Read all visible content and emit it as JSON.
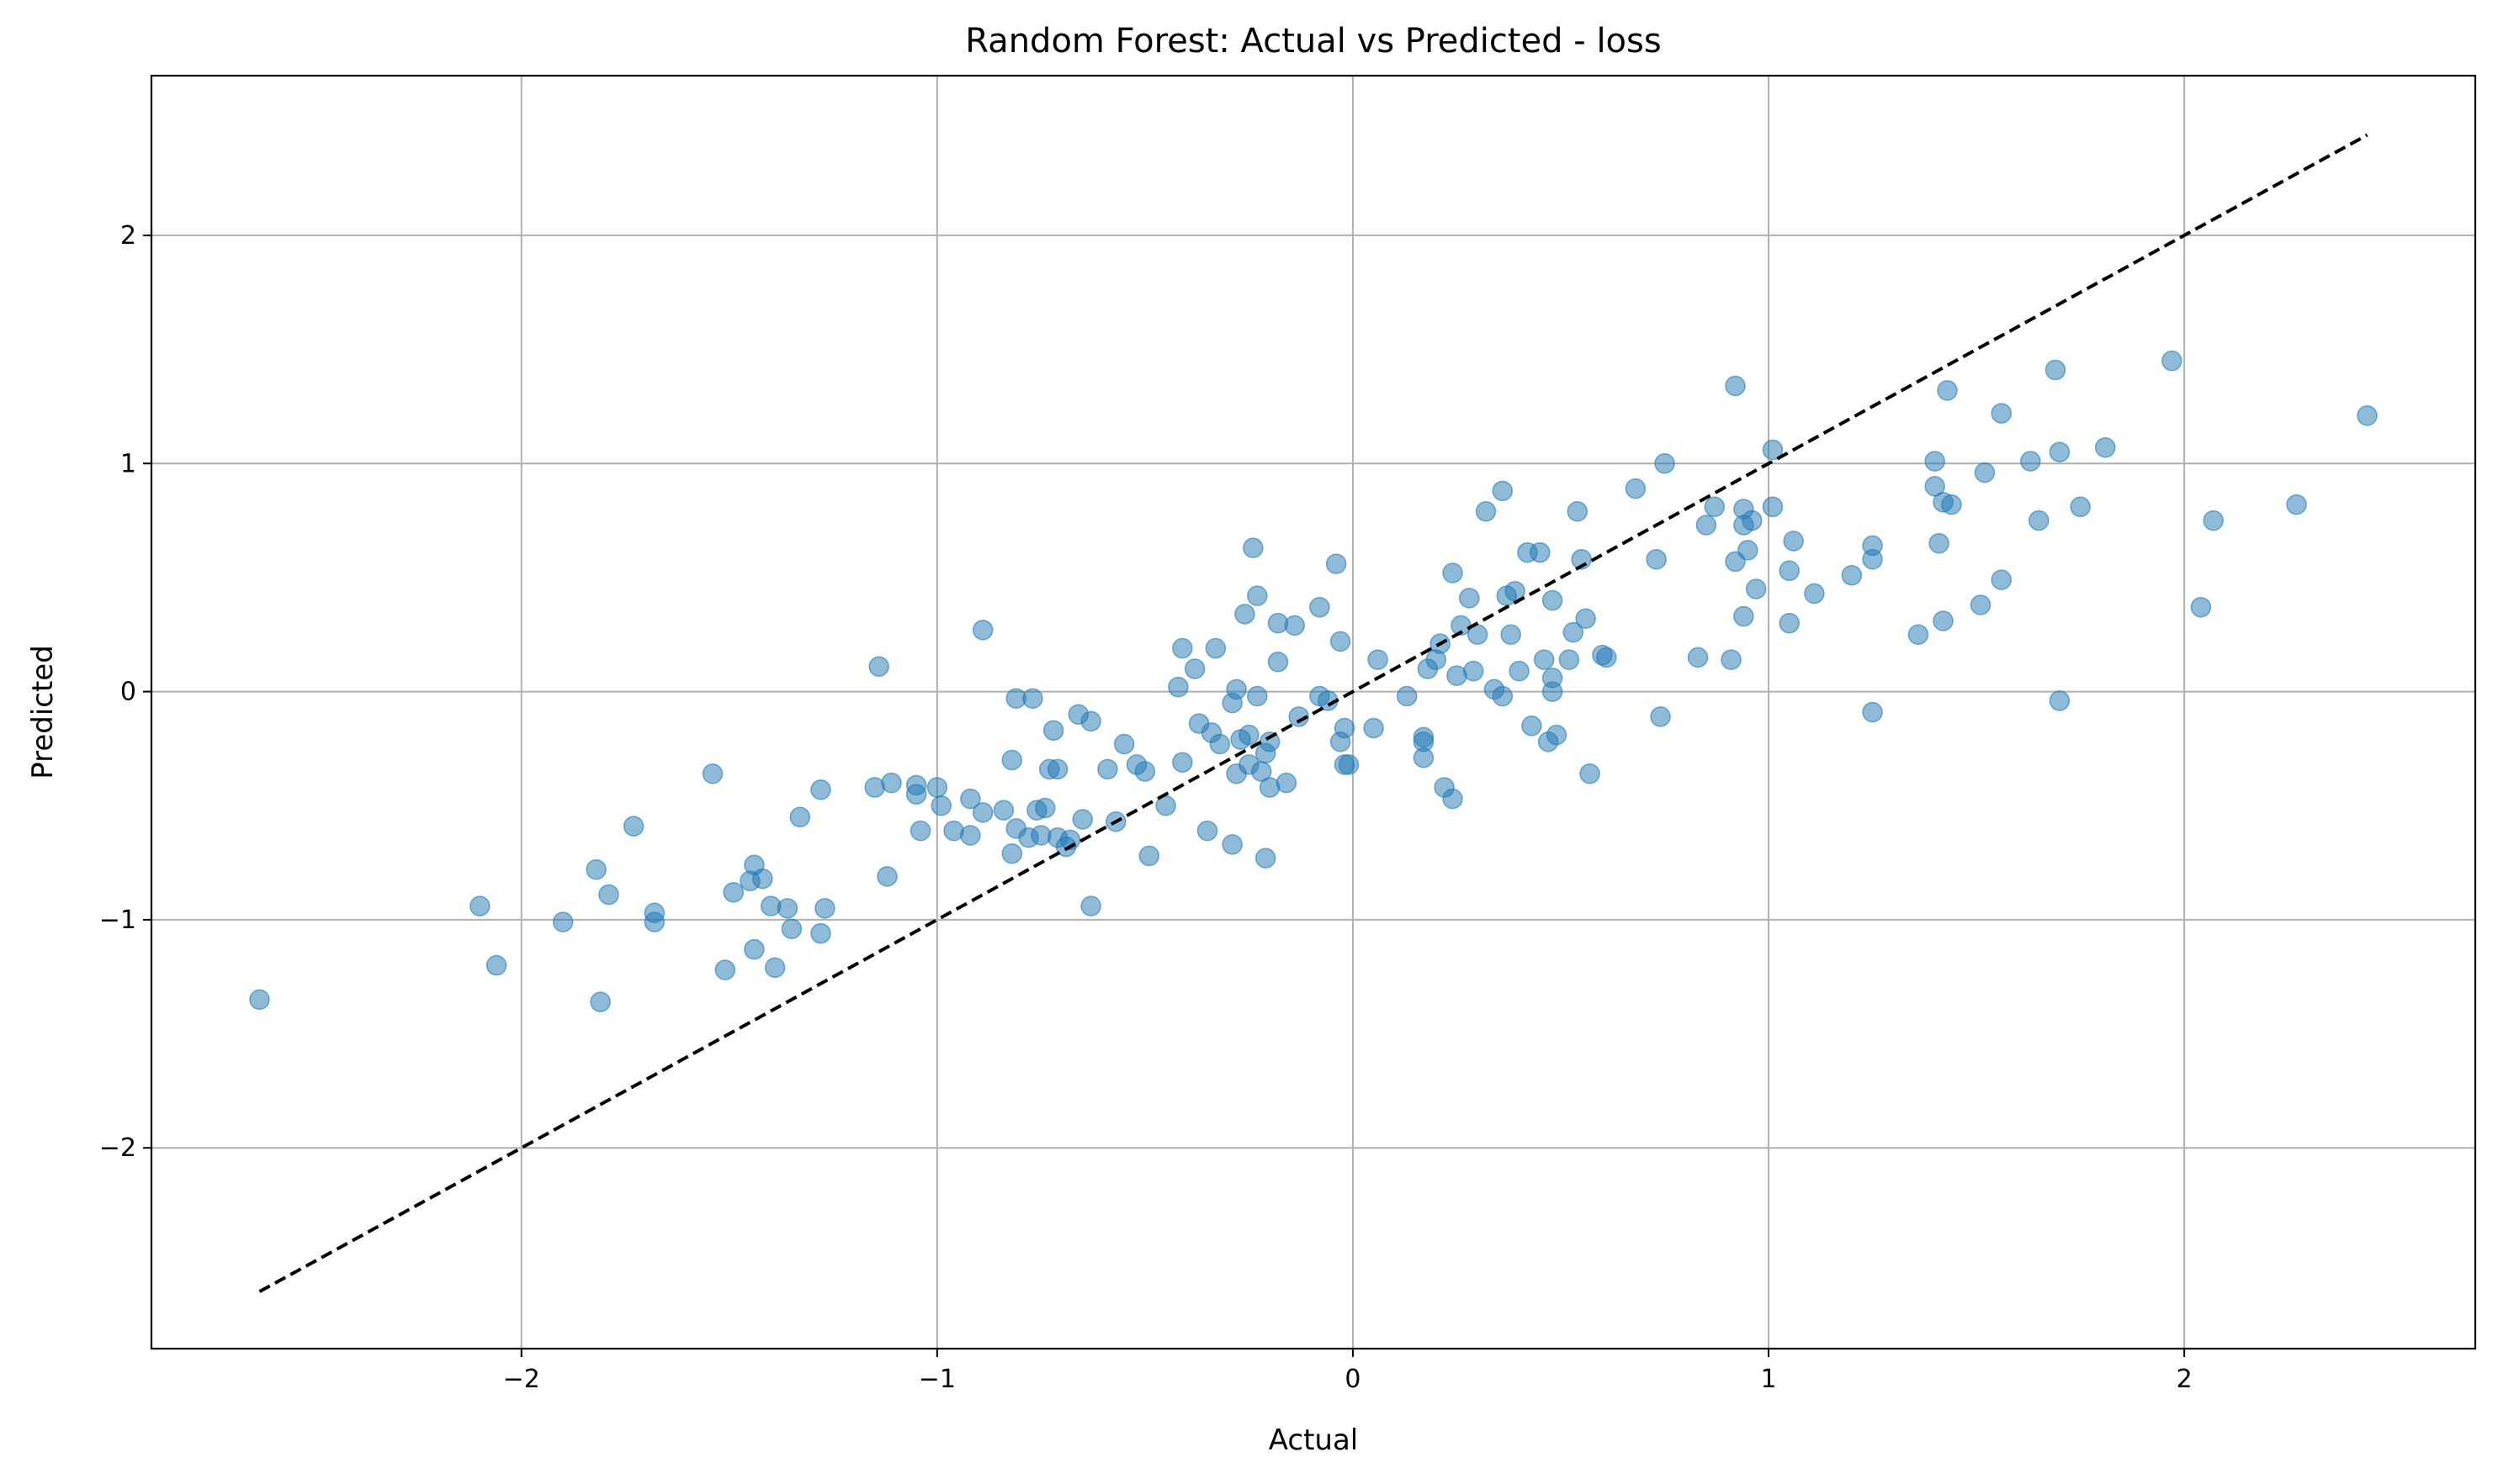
{
  "chart_data": {
    "type": "scatter",
    "title": "Random Forest: Actual vs Predicted - loss",
    "xlabel": "Actual",
    "ylabel": "Predicted",
    "xlim": [
      -2.89,
      2.7
    ],
    "ylim": [
      -2.88,
      2.7
    ],
    "x_ticks": [
      -2,
      -1,
      0,
      1,
      2
    ],
    "y_ticks": [
      -2,
      -1,
      0,
      1,
      2
    ],
    "x_tick_labels": [
      "−2",
      "−1",
      "0",
      "1",
      "2"
    ],
    "y_tick_labels": [
      "−2",
      "−1",
      "0",
      "1",
      "2"
    ],
    "grid": true,
    "colors": {
      "points": "#1f77b4",
      "reference_line": "#000000",
      "grid": "#b0b0b0"
    },
    "reference_line": {
      "x": [
        -2.63,
        2.44
      ],
      "y": [
        -2.63,
        2.44
      ],
      "style": "dashed"
    },
    "points": [
      [
        -2.63,
        -1.35
      ],
      [
        -2.1,
        -0.94
      ],
      [
        -2.06,
        -1.2
      ],
      [
        -1.9,
        -1.01
      ],
      [
        -1.82,
        -0.78
      ],
      [
        -1.81,
        -1.36
      ],
      [
        -1.79,
        -0.89
      ],
      [
        -1.73,
        -0.59
      ],
      [
        -1.68,
        -0.97
      ],
      [
        -1.68,
        -1.01
      ],
      [
        -1.54,
        -0.36
      ],
      [
        -1.51,
        -1.22
      ],
      [
        -1.49,
        -0.88
      ],
      [
        -1.45,
        -0.83
      ],
      [
        -1.44,
        -0.76
      ],
      [
        -1.44,
        -1.13
      ],
      [
        -1.42,
        -0.82
      ],
      [
        -1.4,
        -0.94
      ],
      [
        -1.39,
        -1.21
      ],
      [
        -1.36,
        -0.95
      ],
      [
        -1.35,
        -1.04
      ],
      [
        -1.33,
        -0.55
      ],
      [
        -1.28,
        -0.43
      ],
      [
        -1.28,
        -1.06
      ],
      [
        -1.27,
        -0.95
      ],
      [
        -1.15,
        -0.42
      ],
      [
        -1.14,
        0.11
      ],
      [
        -1.12,
        -0.81
      ],
      [
        -1.11,
        -0.4
      ],
      [
        -1.05,
        -0.45
      ],
      [
        -1.05,
        -0.41
      ],
      [
        -1.04,
        -0.61
      ],
      [
        -1.0,
        -0.42
      ],
      [
        -0.99,
        -0.5
      ],
      [
        -0.96,
        -0.61
      ],
      [
        -0.92,
        -0.47
      ],
      [
        -0.92,
        -0.63
      ],
      [
        -0.89,
        0.27
      ],
      [
        -0.89,
        -0.53
      ],
      [
        -0.84,
        -0.52
      ],
      [
        -0.82,
        -0.3
      ],
      [
        -0.82,
        -0.71
      ],
      [
        -0.81,
        -0.03
      ],
      [
        -0.81,
        -0.6
      ],
      [
        -0.78,
        -0.64
      ],
      [
        -0.77,
        -0.03
      ],
      [
        -0.76,
        -0.52
      ],
      [
        -0.75,
        -0.63
      ],
      [
        -0.74,
        -0.51
      ],
      [
        -0.73,
        -0.34
      ],
      [
        -0.72,
        -0.17
      ],
      [
        -0.71,
        -0.34
      ],
      [
        -0.71,
        -0.64
      ],
      [
        -0.69,
        -0.68
      ],
      [
        -0.68,
        -0.65
      ],
      [
        -0.66,
        -0.1
      ],
      [
        -0.65,
        -0.56
      ],
      [
        -0.63,
        -0.94
      ],
      [
        -0.63,
        -0.13
      ],
      [
        -0.59,
        -0.34
      ],
      [
        -0.57,
        -0.57
      ],
      [
        -0.55,
        -0.23
      ],
      [
        -0.52,
        -0.32
      ],
      [
        -0.5,
        -0.35
      ],
      [
        -0.49,
        -0.72
      ],
      [
        -0.45,
        -0.5
      ],
      [
        -0.42,
        0.02
      ],
      [
        -0.41,
        0.19
      ],
      [
        -0.41,
        -0.31
      ],
      [
        -0.38,
        0.1
      ],
      [
        -0.37,
        -0.14
      ],
      [
        -0.35,
        -0.61
      ],
      [
        -0.34,
        -0.18
      ],
      [
        -0.33,
        0.19
      ],
      [
        -0.32,
        -0.23
      ],
      [
        -0.29,
        -0.05
      ],
      [
        -0.29,
        -0.67
      ],
      [
        -0.28,
        0.01
      ],
      [
        -0.28,
        -0.36
      ],
      [
        -0.27,
        -0.21
      ],
      [
        -0.26,
        0.34
      ],
      [
        -0.25,
        -0.19
      ],
      [
        -0.25,
        -0.32
      ],
      [
        -0.24,
        0.63
      ],
      [
        -0.23,
        0.42
      ],
      [
        -0.23,
        -0.02
      ],
      [
        -0.22,
        -0.35
      ],
      [
        -0.21,
        -0.73
      ],
      [
        -0.21,
        -0.27
      ],
      [
        -0.2,
        -0.22
      ],
      [
        -0.2,
        -0.42
      ],
      [
        -0.18,
        0.13
      ],
      [
        -0.18,
        0.3
      ],
      [
        -0.16,
        -0.4
      ],
      [
        -0.14,
        0.29
      ],
      [
        -0.13,
        -0.11
      ],
      [
        -0.08,
        0.37
      ],
      [
        -0.08,
        -0.02
      ],
      [
        -0.06,
        -0.04
      ],
      [
        -0.04,
        0.56
      ],
      [
        -0.03,
        0.22
      ],
      [
        -0.03,
        -0.22
      ],
      [
        -0.02,
        -0.16
      ],
      [
        -0.02,
        -0.32
      ],
      [
        -0.01,
        -0.32
      ],
      [
        0.05,
        -0.16
      ],
      [
        0.06,
        0.14
      ],
      [
        0.13,
        -0.02
      ],
      [
        0.17,
        -0.2
      ],
      [
        0.17,
        -0.22
      ],
      [
        0.17,
        -0.29
      ],
      [
        0.18,
        0.1
      ],
      [
        0.2,
        0.14
      ],
      [
        0.21,
        0.21
      ],
      [
        0.22,
        -0.42
      ],
      [
        0.24,
        0.52
      ],
      [
        0.24,
        -0.47
      ],
      [
        0.25,
        0.07
      ],
      [
        0.26,
        0.29
      ],
      [
        0.28,
        0.41
      ],
      [
        0.29,
        0.09
      ],
      [
        0.3,
        0.25
      ],
      [
        0.32,
        0.79
      ],
      [
        0.34,
        0.01
      ],
      [
        0.36,
        -0.02
      ],
      [
        0.36,
        0.88
      ],
      [
        0.37,
        0.42
      ],
      [
        0.38,
        0.25
      ],
      [
        0.39,
        0.44
      ],
      [
        0.4,
        0.09
      ],
      [
        0.42,
        0.61
      ],
      [
        0.43,
        -0.15
      ],
      [
        0.45,
        0.61
      ],
      [
        0.46,
        0.14
      ],
      [
        0.47,
        -0.22
      ],
      [
        0.48,
        0.4
      ],
      [
        0.48,
        0.06
      ],
      [
        0.48,
        0.0
      ],
      [
        0.49,
        -0.19
      ],
      [
        0.52,
        0.14
      ],
      [
        0.53,
        0.26
      ],
      [
        0.54,
        0.79
      ],
      [
        0.55,
        0.58
      ],
      [
        0.56,
        0.32
      ],
      [
        0.57,
        -0.36
      ],
      [
        0.6,
        0.16
      ],
      [
        0.61,
        0.15
      ],
      [
        0.68,
        0.89
      ],
      [
        0.73,
        0.58
      ],
      [
        0.74,
        -0.11
      ],
      [
        0.75,
        1.0
      ],
      [
        0.83,
        0.15
      ],
      [
        0.85,
        0.73
      ],
      [
        0.87,
        0.81
      ],
      [
        0.91,
        0.14
      ],
      [
        0.92,
        1.34
      ],
      [
        0.92,
        0.57
      ],
      [
        0.94,
        0.8
      ],
      [
        0.94,
        0.33
      ],
      [
        0.94,
        0.73
      ],
      [
        0.95,
        0.62
      ],
      [
        0.96,
        0.75
      ],
      [
        0.97,
        0.45
      ],
      [
        1.01,
        0.81
      ],
      [
        1.01,
        1.06
      ],
      [
        1.05,
        0.53
      ],
      [
        1.05,
        0.3
      ],
      [
        1.06,
        0.66
      ],
      [
        1.11,
        0.43
      ],
      [
        1.2,
        0.51
      ],
      [
        1.25,
        0.58
      ],
      [
        1.25,
        0.64
      ],
      [
        1.25,
        -0.09
      ],
      [
        1.36,
        0.25
      ],
      [
        1.4,
        1.01
      ],
      [
        1.4,
        0.9
      ],
      [
        1.41,
        0.65
      ],
      [
        1.42,
        0.83
      ],
      [
        1.42,
        0.31
      ],
      [
        1.43,
        1.32
      ],
      [
        1.44,
        0.82
      ],
      [
        1.51,
        0.38
      ],
      [
        1.52,
        0.96
      ],
      [
        1.56,
        0.49
      ],
      [
        1.56,
        1.22
      ],
      [
        1.63,
        1.01
      ],
      [
        1.65,
        0.75
      ],
      [
        1.69,
        1.41
      ],
      [
        1.7,
        1.05
      ],
      [
        1.7,
        -0.04
      ],
      [
        1.75,
        0.81
      ],
      [
        1.81,
        1.07
      ],
      [
        1.97,
        1.45
      ],
      [
        2.04,
        0.37
      ],
      [
        2.07,
        0.75
      ],
      [
        2.27,
        0.82
      ],
      [
        2.44,
        1.21
      ]
    ]
  }
}
